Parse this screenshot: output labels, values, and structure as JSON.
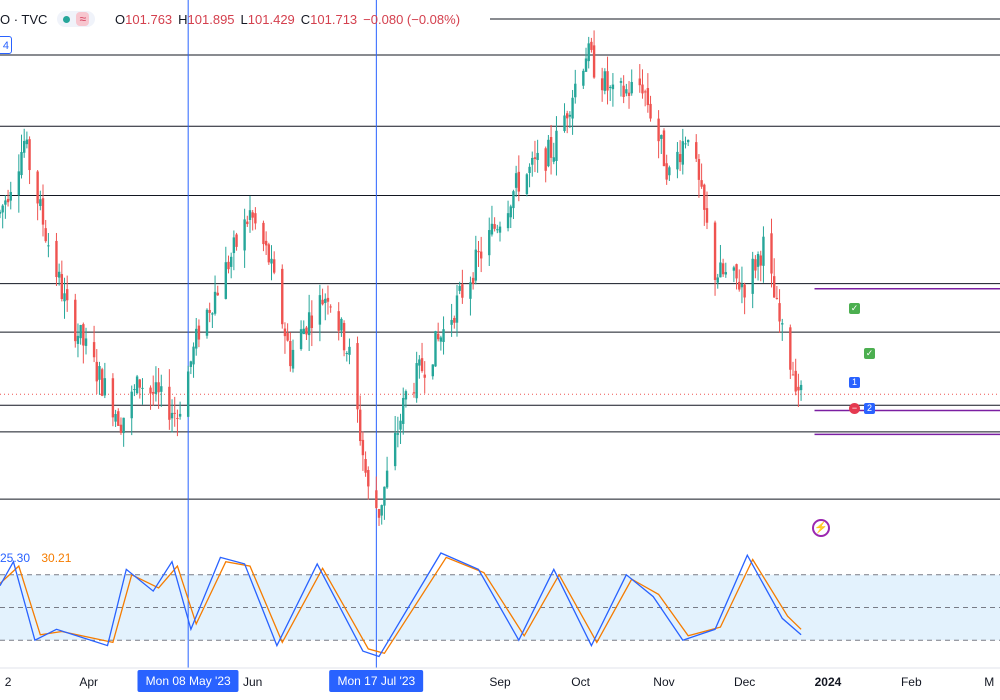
{
  "legend": {
    "symbol": "O · TVC",
    "wave_icon": "≈",
    "open_key": "O",
    "open": "101.763",
    "high_key": "H",
    "high": "101.895",
    "low_key": "L",
    "low": "101.429",
    "close_key": "C",
    "close": "101.713",
    "change": "−0.080 (−0.08%)"
  },
  "badge": "4",
  "stochastic": {
    "k_value": "25.30",
    "d_value": "30.21",
    "k_color": "#2962ff",
    "d_color": "#f57c00"
  },
  "colors": {
    "up": "#26a69a",
    "down": "#ef5350",
    "level": "#131722",
    "position": "#7b1fa2",
    "crosshair": "#2962ff",
    "band": "#e3f2fd"
  },
  "markers": {
    "num1": "1",
    "num2": "2"
  },
  "chart_data": {
    "type": "candlestick",
    "x_start": "2023-02-27",
    "x_end": "2024-03-05",
    "y_range": [
      100.0,
      107.8
    ],
    "price_levels": [
      106.95,
      105.85,
      104.78,
      103.42,
      102.67,
      101.54,
      101.13,
      100.09
    ],
    "current_price": 101.71,
    "position_lines": [
      {
        "y": 103.34,
        "from": "2023-12-27",
        "to": "2024-03-05"
      },
      {
        "y": 101.46,
        "from": "2023-12-27",
        "to": "2024-03-05"
      },
      {
        "y": 101.09,
        "from": "2023-12-27",
        "to": "2024-03-05"
      }
    ],
    "crosshairs": [
      {
        "date": "2023-05-08",
        "label": "Mon 08 May '23"
      },
      {
        "date": "2023-07-17",
        "label": "Mon 17 Jul '23"
      }
    ],
    "x_ticks": [
      {
        "date": "2023-03-02",
        "label": "2"
      },
      {
        "date": "2023-04-01",
        "label": "Apr"
      },
      {
        "date": "2023-06-01",
        "label": "Jun"
      },
      {
        "date": "2023-09-01",
        "label": "Sep"
      },
      {
        "date": "2023-10-01",
        "label": "Oct"
      },
      {
        "date": "2023-11-01",
        "label": "Nov"
      },
      {
        "date": "2023-12-01",
        "label": "Dec"
      },
      {
        "date": "2024-01-01",
        "label": "2024",
        "bold": true
      },
      {
        "date": "2024-02-01",
        "label": "Feb"
      },
      {
        "date": "2024-03-01",
        "label": "M"
      }
    ],
    "price_path": [
      [
        "2023-02-27",
        104.5
      ],
      [
        "2023-03-08",
        105.6
      ],
      [
        "2023-03-16",
        104.2
      ],
      [
        "2023-03-24",
        103.0
      ],
      [
        "2023-04-13",
        101.3
      ],
      [
        "2023-04-20",
        101.9
      ],
      [
        "2023-05-04",
        101.4
      ],
      [
        "2023-05-12",
        102.7
      ],
      [
        "2023-05-31",
        104.5
      ],
      [
        "2023-06-07",
        103.8
      ],
      [
        "2023-06-15",
        102.3
      ],
      [
        "2023-06-22",
        102.9
      ],
      [
        "2023-06-29",
        103.3
      ],
      [
        "2023-07-07",
        102.3
      ],
      [
        "2023-07-14",
        100.2
      ],
      [
        "2023-07-18",
        99.9
      ],
      [
        "2023-07-28",
        101.7
      ],
      [
        "2023-08-10",
        102.6
      ],
      [
        "2023-08-25",
        103.9
      ],
      [
        "2023-09-08",
        105.0
      ],
      [
        "2023-09-21",
        105.5
      ],
      [
        "2023-10-03",
        107.0
      ],
      [
        "2023-10-13",
        106.3
      ],
      [
        "2023-10-24",
        106.5
      ],
      [
        "2023-11-03",
        105.1
      ],
      [
        "2023-11-10",
        105.8
      ],
      [
        "2023-11-20",
        103.6
      ],
      [
        "2023-12-01",
        103.4
      ],
      [
        "2023-12-08",
        104.0
      ],
      [
        "2023-12-15",
        102.6
      ],
      [
        "2023-12-22",
        101.7
      ]
    ],
    "stochastic": {
      "upper": 80,
      "middle": 50,
      "lower": 20,
      "k_path": [
        [
          "2023-02-27",
          70
        ],
        [
          "2023-03-04",
          92
        ],
        [
          "2023-03-12",
          20
        ],
        [
          "2023-03-20",
          30
        ],
        [
          "2023-04-08",
          15
        ],
        [
          "2023-04-15",
          85
        ],
        [
          "2023-04-25",
          65
        ],
        [
          "2023-05-02",
          92
        ],
        [
          "2023-05-09",
          30
        ],
        [
          "2023-05-20",
          96
        ],
        [
          "2023-05-29",
          90
        ],
        [
          "2023-06-10",
          15
        ],
        [
          "2023-06-25",
          90
        ],
        [
          "2023-07-12",
          10
        ],
        [
          "2023-07-18",
          5
        ],
        [
          "2023-08-10",
          100
        ],
        [
          "2023-08-24",
          85
        ],
        [
          "2023-09-08",
          20
        ],
        [
          "2023-09-21",
          85
        ],
        [
          "2023-10-05",
          15
        ],
        [
          "2023-10-18",
          80
        ],
        [
          "2023-10-28",
          60
        ],
        [
          "2023-11-08",
          20
        ],
        [
          "2023-11-20",
          30
        ],
        [
          "2023-12-02",
          98
        ],
        [
          "2023-12-15",
          40
        ],
        [
          "2023-12-22",
          25
        ]
      ],
      "d_path": [
        [
          "2023-02-27",
          72
        ],
        [
          "2023-03-06",
          88
        ],
        [
          "2023-03-14",
          25
        ],
        [
          "2023-03-22",
          28
        ],
        [
          "2023-04-10",
          18
        ],
        [
          "2023-04-17",
          80
        ],
        [
          "2023-04-27",
          68
        ],
        [
          "2023-05-04",
          88
        ],
        [
          "2023-05-11",
          35
        ],
        [
          "2023-05-22",
          92
        ],
        [
          "2023-05-31",
          88
        ],
        [
          "2023-06-12",
          18
        ],
        [
          "2023-06-27",
          86
        ],
        [
          "2023-07-14",
          12
        ],
        [
          "2023-07-20",
          8
        ],
        [
          "2023-08-12",
          96
        ],
        [
          "2023-08-26",
          82
        ],
        [
          "2023-09-10",
          24
        ],
        [
          "2023-09-23",
          80
        ],
        [
          "2023-10-07",
          18
        ],
        [
          "2023-10-20",
          76
        ],
        [
          "2023-10-30",
          62
        ],
        [
          "2023-11-10",
          24
        ],
        [
          "2023-11-22",
          32
        ],
        [
          "2023-12-04",
          94
        ],
        [
          "2023-12-17",
          42
        ],
        [
          "2023-12-22",
          30
        ]
      ]
    }
  }
}
